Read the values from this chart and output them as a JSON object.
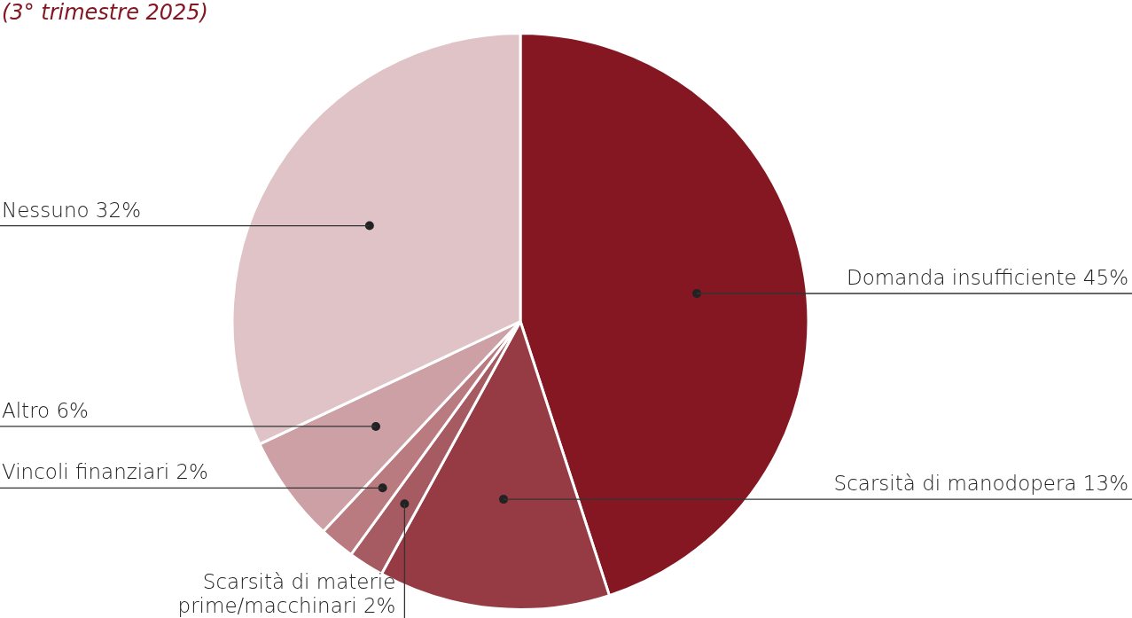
{
  "chart_data": {
    "type": "pie",
    "title": "(3° trimestre 2025)",
    "categories": [
      "Domanda insufficiente",
      "Scarsità di manodopera",
      "Scarsità di materie prime/macchinari",
      "Vincoli finanziari",
      "Altro",
      "Nessuno"
    ],
    "values": [
      45,
      13,
      2,
      2,
      6,
      32
    ],
    "value_labels": [
      "45%",
      "13%",
      "2%",
      "2%",
      "6%",
      "32%"
    ],
    "colors": [
      "#841722",
      "#963a44",
      "#a65a62",
      "#b97a80",
      "#cca0a5",
      "#e0c3c7"
    ],
    "legend": false
  }
}
